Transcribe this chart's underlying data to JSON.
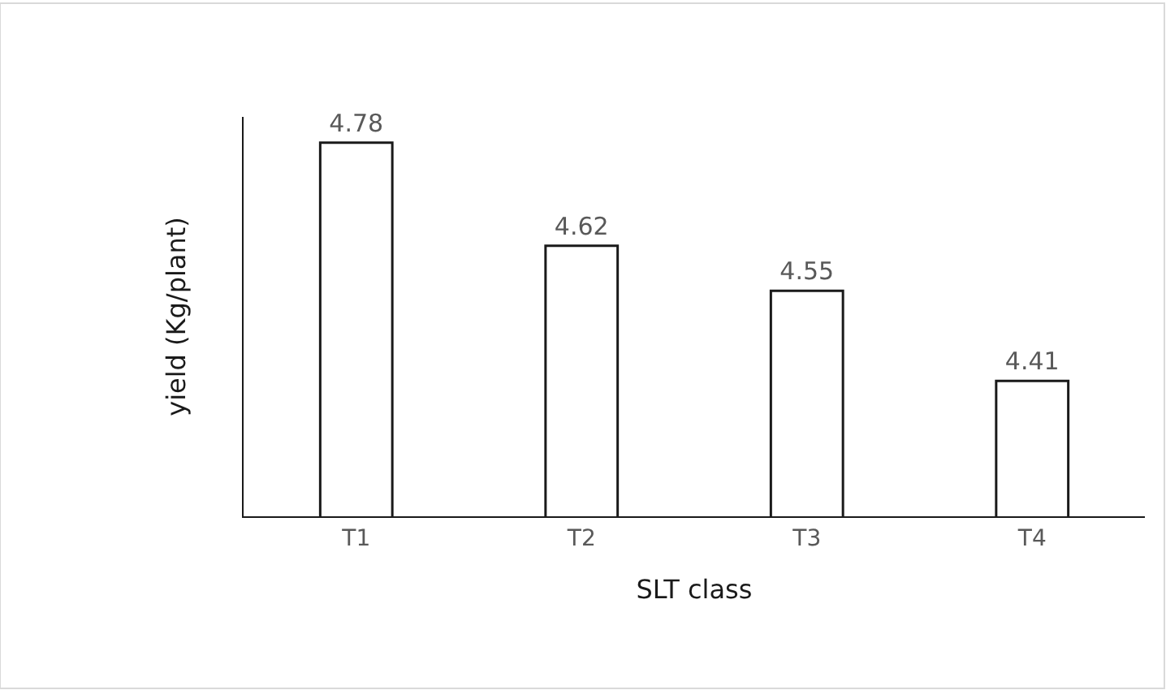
{
  "chart_data": {
    "type": "bar",
    "xlabel": "SLT class",
    "ylabel": "yield (Kg/plant)",
    "categories": [
      "T1",
      "T2",
      "T3",
      "T4"
    ],
    "values": [
      4.78,
      4.62,
      4.55,
      4.41
    ],
    "color": "#ffffff",
    "ylim": [
      4.2,
      4.82
    ],
    "tick_labels": "x",
    "data_labels": true,
    "legend": false
  }
}
